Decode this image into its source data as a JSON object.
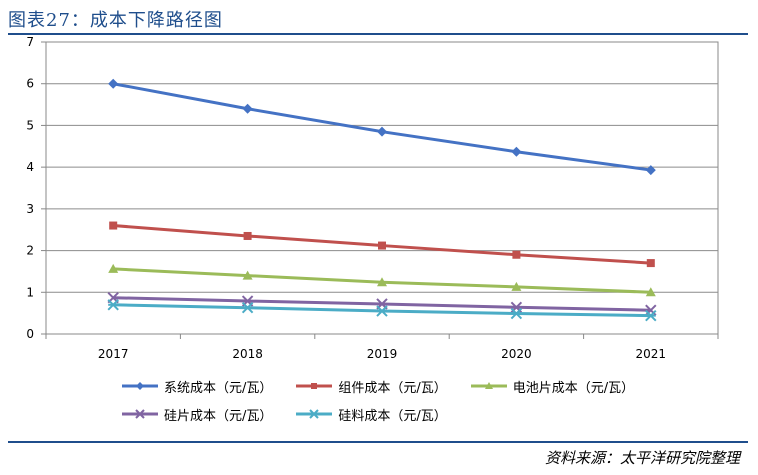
{
  "header": {
    "title": "图表27：成本下降路径图"
  },
  "source": "资料来源：太平洋研究院整理",
  "chart_data": {
    "type": "line",
    "x": [
      "2017",
      "2018",
      "2019",
      "2020",
      "2021"
    ],
    "ylim": [
      0,
      7
    ],
    "yticks": [
      "0",
      "1",
      "2",
      "3",
      "4",
      "5",
      "6",
      "7"
    ],
    "grid": true,
    "legend_position": "bottom",
    "series": [
      {
        "name": "系统成本（元/瓦）",
        "values": [
          6.0,
          5.4,
          4.85,
          4.37,
          3.93
        ],
        "color": "#4472c4",
        "marker": "diamond"
      },
      {
        "name": "组件成本（元/瓦）",
        "values": [
          2.6,
          2.35,
          2.12,
          1.9,
          1.7
        ],
        "color": "#c0504d",
        "marker": "square"
      },
      {
        "name": "电池片成本（元/瓦）",
        "values": [
          1.56,
          1.4,
          1.24,
          1.13,
          1.0
        ],
        "color": "#9bbb59",
        "marker": "triangle"
      },
      {
        "name": "硅片成本（元/瓦）",
        "values": [
          0.87,
          0.79,
          0.72,
          0.64,
          0.57
        ],
        "color": "#8064a2",
        "marker": "x"
      },
      {
        "name": "硅料成本（元/瓦）",
        "values": [
          0.7,
          0.63,
          0.55,
          0.49,
          0.44
        ],
        "color": "#4bacc6",
        "marker": "asterisk"
      }
    ]
  }
}
